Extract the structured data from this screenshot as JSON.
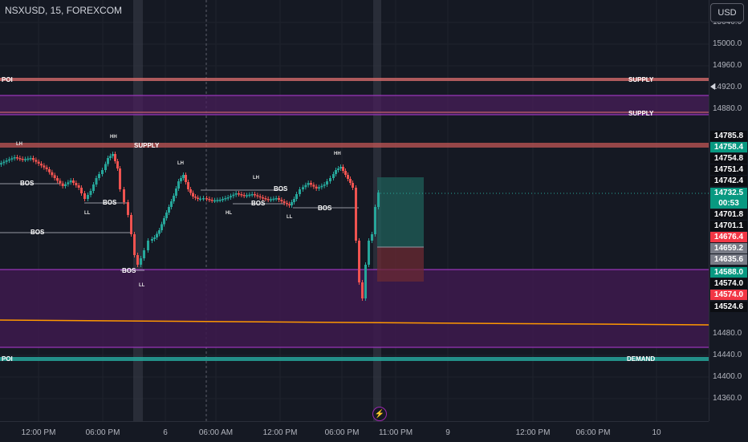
{
  "header": {
    "symbol": "NSXUSD, 15, FOREXCOM",
    "currency": "USD"
  },
  "price_axis": {
    "ticks": [
      "15040.0",
      "15000.0",
      "14960.0",
      "14920.0",
      "14880.0",
      "14480.0",
      "14440.0",
      "14400.0",
      "14360.0"
    ],
    "tags": [
      {
        "value": "14785.8",
        "style": "dark"
      },
      {
        "value": "14758.4",
        "style": "green"
      },
      {
        "value": "14754.8",
        "style": "dark"
      },
      {
        "value": "14751.4",
        "style": "dark"
      },
      {
        "value": "14742.4",
        "style": "dark"
      },
      {
        "value": "14732.5",
        "style": "green"
      },
      {
        "value": "00:53",
        "style": "green"
      },
      {
        "value": "14701.8",
        "style": "dark"
      },
      {
        "value": "14701.1",
        "style": "dark"
      },
      {
        "value": "14676.4",
        "style": "red"
      },
      {
        "value": "14659.2",
        "style": "gray"
      },
      {
        "value": "14635.6",
        "style": "gray"
      },
      {
        "value": "14588.0",
        "style": "green"
      },
      {
        "value": "14574.0",
        "style": "dark"
      },
      {
        "value": "14574.0",
        "style": "red"
      },
      {
        "value": "14524.6",
        "style": "dark"
      }
    ]
  },
  "time_axis": {
    "ticks": [
      "12:00 PM",
      "06:00 PM",
      "6",
      "06:00 AM",
      "12:00 PM",
      "06:00 PM",
      "11:00 PM",
      "9",
      "12:00 PM",
      "06:00 PM",
      "10"
    ]
  },
  "annotations": {
    "poi_top": "POI",
    "supply_1": "SUPPLY",
    "supply_2": "SUPPLY",
    "supply_3": "SUPPLY",
    "poi_bottom": "POI",
    "demand": "DEMAND",
    "bos_1": "BOS",
    "bos_2": "BOS",
    "bos_3": "BOS",
    "bos_4": "BOS",
    "bos_5": "BOS",
    "bos_6": "BOS",
    "bos_7": "BOS",
    "lh_1": "LH",
    "lh_2": "LH",
    "lh_3": "LH",
    "hh_1": "HH",
    "hh_2": "HH",
    "ll_1": "LL",
    "ll_2": "LL",
    "ll_3": "LL",
    "hl_1": "HL"
  },
  "colors": {
    "background": "#151923",
    "up": "#26a69a",
    "down": "#ef5350",
    "supply_line": "#e57373",
    "zone": "#9c27b0",
    "demand": "#26a69a",
    "trendline": "#ff9800"
  },
  "chart_data": {
    "type": "candlestick",
    "title": "",
    "ylim": [
      14340,
      15050
    ],
    "reference_lines": [
      14940,
      14915,
      14880,
      14785.8,
      14588,
      14440
    ]
  }
}
